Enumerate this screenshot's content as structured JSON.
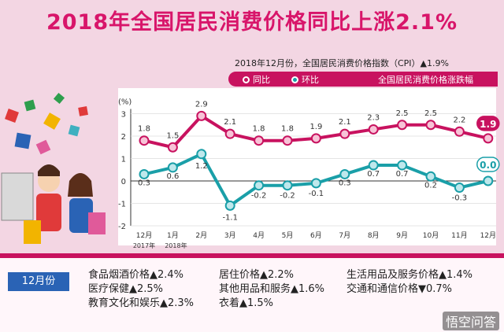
{
  "title": "2018年全国居民消费价格同比上涨2.1%",
  "subtitle": "2018年12月份，全国居民消费价格指数（CPI）▲1.9%",
  "legend": {
    "yoy": "同比",
    "mom": "环比",
    "note": "全国居民消费价格涨跌幅"
  },
  "colors": {
    "yoy": "#c8125f",
    "mom": "#1a9fa8",
    "accent": "#d8156a",
    "bar": "#c8125f",
    "tag": "#2a63b5"
  },
  "chart_data": {
    "type": "line",
    "ylabel": "(%)",
    "ylim": [
      -2,
      3
    ],
    "yticks": [
      "3",
      "2",
      "1",
      "0",
      "-1",
      "-2"
    ],
    "categories": [
      "12月",
      "1月",
      "2月",
      "3月",
      "4月",
      "5月",
      "6月",
      "7月",
      "8月",
      "9月",
      "10月",
      "11月",
      "12月"
    ],
    "year_labels": [
      "2017年",
      "2018年"
    ],
    "series": [
      {
        "name": "同比",
        "values": [
          1.8,
          1.5,
          2.9,
          2.1,
          1.8,
          1.8,
          1.9,
          2.1,
          2.3,
          2.5,
          2.5,
          2.2,
          1.9
        ],
        "labels": [
          "1.8",
          "1.5",
          "2.9",
          "2.1",
          "1.8",
          "1.8",
          "1.9",
          "2.1",
          "2.3",
          "2.5",
          "2.5",
          "2.2",
          "1.9"
        ]
      },
      {
        "name": "环比",
        "values": [
          0.3,
          0.6,
          1.2,
          -1.1,
          -0.2,
          -0.2,
          -0.1,
          0.3,
          0.7,
          0.7,
          0.2,
          -0.3,
          0.0
        ],
        "labels": [
          "0.3",
          "0.6",
          "1.2",
          "-1.1",
          "-0.2",
          "-0.2",
          "-0.1",
          "0.3",
          "0.7",
          "0.7",
          "0.2",
          "-0.3",
          "0.0"
        ]
      }
    ]
  },
  "bottom": {
    "month_tag": "12月份",
    "items": [
      "食品烟酒价格▲2.4%",
      "居住价格▲2.2%",
      "生活用品及服务价格▲1.4%",
      "医疗保健▲2.5%",
      "其他用品和服务▲1.6%",
      "交通和通信价格▼0.7%",
      "教育文化和娱乐▲2.3%",
      "衣着▲1.5%"
    ]
  },
  "watermark": "悟空问答"
}
